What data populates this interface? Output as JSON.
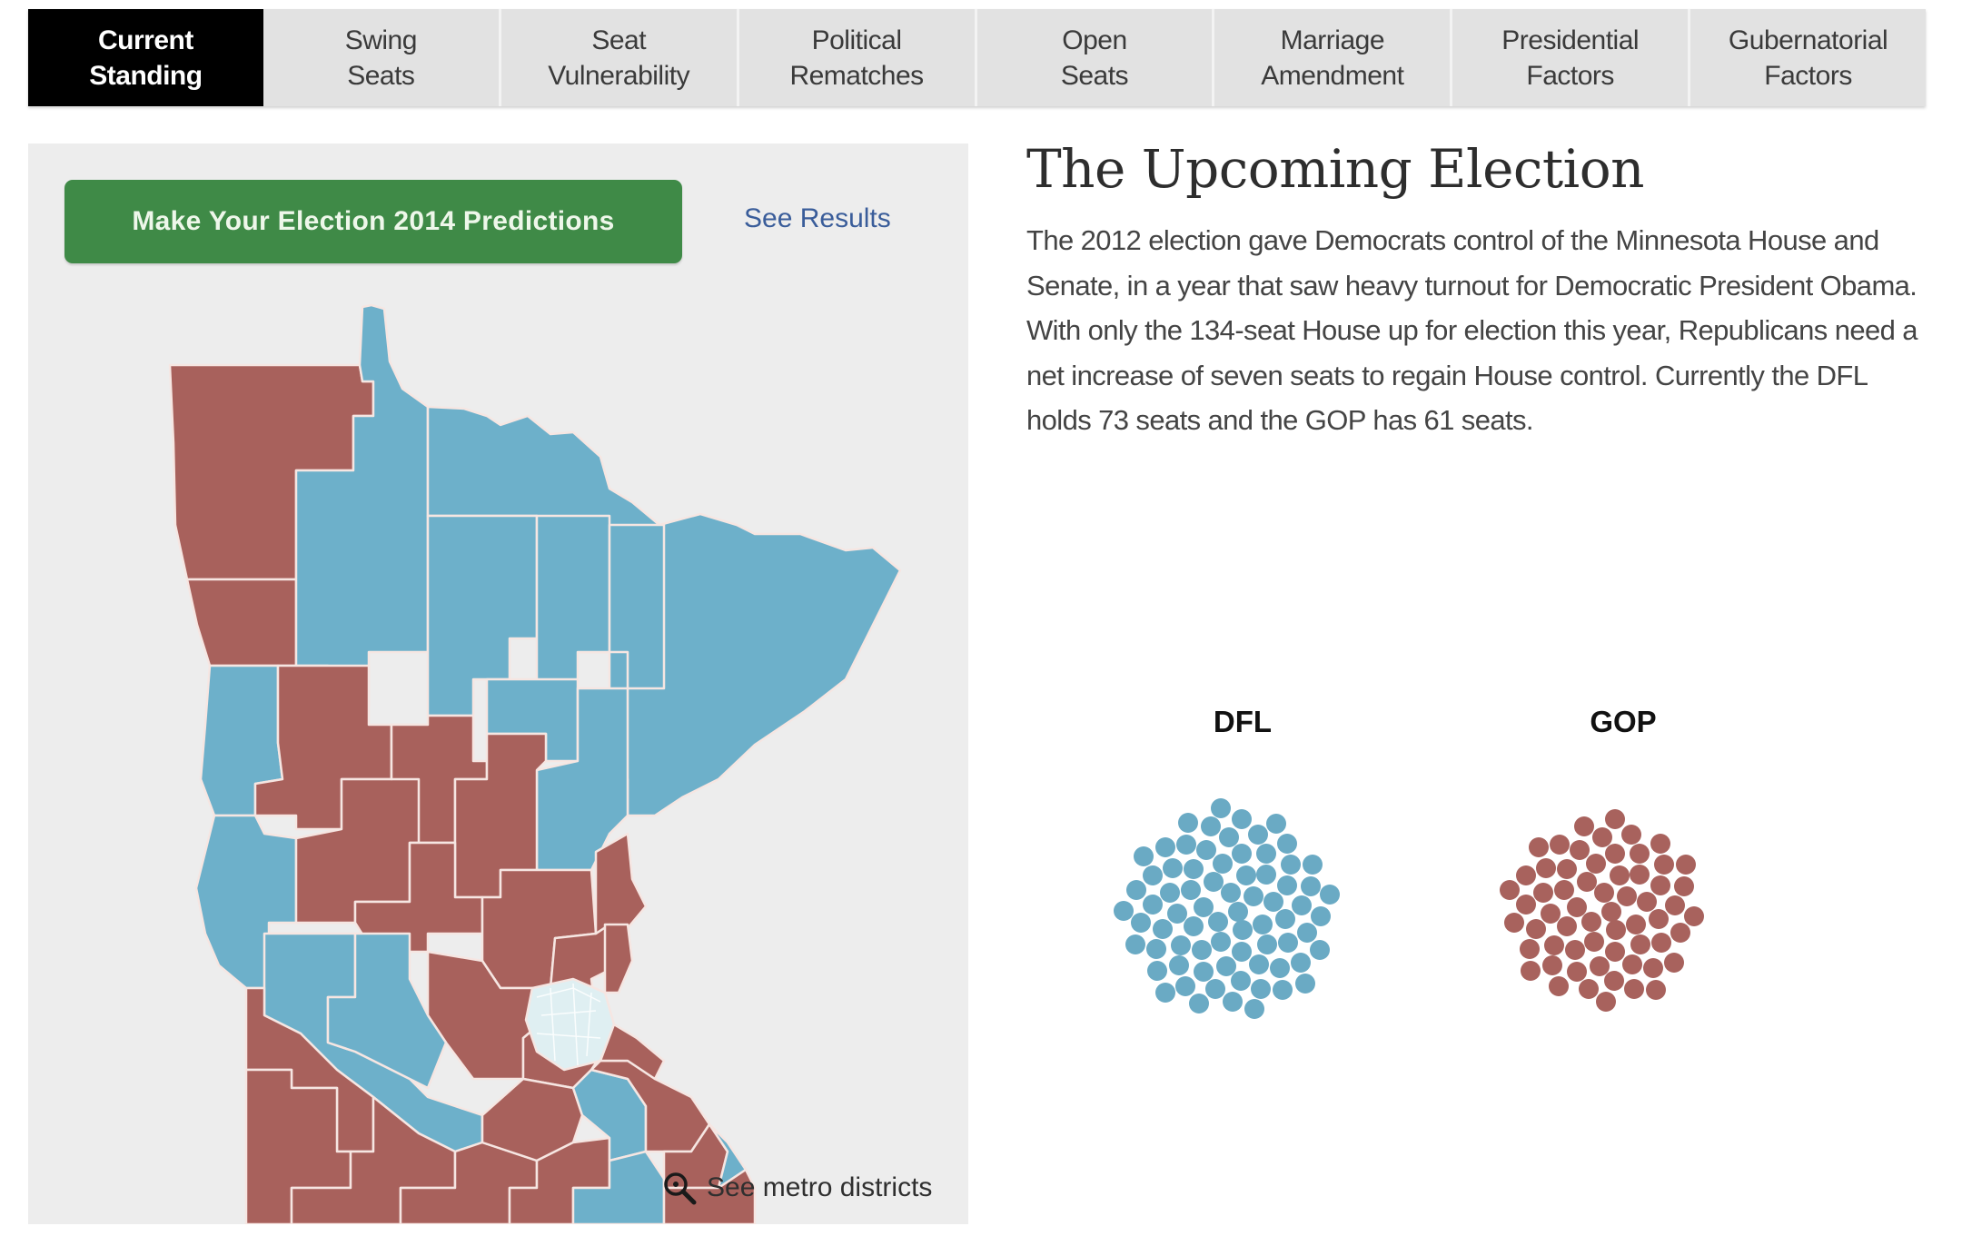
{
  "tabs": [
    {
      "label": "Current\nStanding",
      "active": true
    },
    {
      "label": "Swing\nSeats",
      "active": false
    },
    {
      "label": "Seat\nVulnerability",
      "active": false
    },
    {
      "label": "Political\nRematches",
      "active": false
    },
    {
      "label": "Open\nSeats",
      "active": false
    },
    {
      "label": "Marriage\nAmendment",
      "active": false
    },
    {
      "label": "Presidential\nFactors",
      "active": false
    },
    {
      "label": "Gubernatorial\nFactors",
      "active": false
    }
  ],
  "map_panel": {
    "predict_button": "Make Your Election 2014 Predictions",
    "see_results_link": "See Results",
    "metro_link": "See metro districts",
    "metro_icon": "zoom-in-icon"
  },
  "article": {
    "headline": "The Upcoming Election",
    "body": "The 2012 election gave Democrats control of the Minnesota House and Senate, in a year that saw heavy turnout for Democratic President Obama. With only the 134-seat House up for election this year, Republicans need a net increase of seven seats to regain House control. Currently the DFL holds 73 seats and the GOP has 61 seats."
  },
  "colors": {
    "dfl": "#6aaac4",
    "gop": "#a8625d",
    "active_tab": "#000000",
    "tab_bg": "#e2e2e2",
    "button_green": "#3f8a47",
    "link_blue": "#3a5d9a",
    "panel_bg": "#ededed"
  },
  "chart_data": {
    "type": "scatter",
    "title": "Minnesota House seats by party",
    "categories": [
      "DFL",
      "GOP"
    ],
    "values": [
      73,
      61
    ],
    "total_seats": 134,
    "series": [
      {
        "name": "DFL",
        "values": [
          73
        ],
        "color": "#6aaac4"
      },
      {
        "name": "GOP",
        "values": [
          61
        ],
        "color": "#a8625d"
      }
    ],
    "xlabel": "",
    "ylabel": ""
  }
}
